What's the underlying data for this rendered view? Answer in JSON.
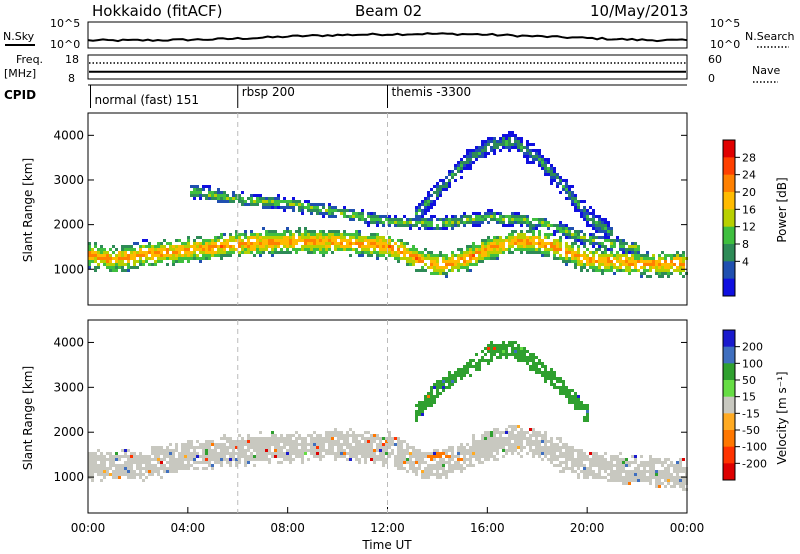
{
  "header": {
    "station": "Hokkaido (fitACF)",
    "beam": "Beam 02",
    "date": "10/May/2013"
  },
  "noise_panel": {
    "left_label": "N.Sky",
    "right_label": "N.Search",
    "left_ticks": [
      "10^5",
      "10^0"
    ],
    "right_ticks": [
      "10^5",
      "10^0"
    ],
    "sky_level": [
      0.3,
      0.3,
      0.32,
      0.35,
      0.42,
      0.5,
      0.55,
      0.58,
      0.6,
      0.58,
      0.52,
      0.45,
      0.38,
      0.32,
      0.3
    ]
  },
  "freq_panel": {
    "left_label": "Freq.",
    "left_unit": "[MHz]",
    "right_label": "Nave",
    "left_ticks": [
      "18",
      "8"
    ],
    "right_ticks": [
      "60",
      "0"
    ],
    "freq_mhz": 11.0,
    "nave": 40
  },
  "cpid_panel": {
    "label": "CPID",
    "segments": [
      {
        "label": "normal (fast) 151",
        "start_hr": 0.1
      },
      {
        "label": "rbsp 200",
        "start_hr": 6.0
      },
      {
        "label": "themis -3300",
        "start_hr": 12.0
      }
    ]
  },
  "chart_data": [
    {
      "type": "heatmap",
      "title": "",
      "ylabel": "Slant Range [km]",
      "xlabel": "",
      "xlim": [
        0,
        24
      ],
      "ylim": [
        200,
        4500
      ],
      "yticks": [
        "1000",
        "2000",
        "3000",
        "4000"
      ],
      "colorbar": {
        "label": "Power [dB]",
        "ticks": [
          "28",
          "24",
          "20",
          "16",
          "12",
          "8",
          "4"
        ],
        "colors": [
          "#e00000",
          "#ff4000",
          "#ff8000",
          "#ffbb00",
          "#b8d000",
          "#3fbf3f",
          "#2e8b57",
          "#2050b0",
          "#1010e0"
        ]
      },
      "bands": [
        {
          "name": "main",
          "path": [
            [
              0,
              1350
            ],
            [
              1,
              1250
            ],
            [
              2,
              1350
            ],
            [
              4,
              1450
            ],
            [
              6,
              1600
            ],
            [
              8,
              1650
            ],
            [
              10,
              1650
            ],
            [
              12,
              1550
            ],
            [
              13,
              1300
            ],
            [
              14,
              1100
            ],
            [
              15,
              1250
            ],
            [
              16,
              1500
            ],
            [
              17,
              1650
            ],
            [
              18,
              1650
            ],
            [
              19,
              1450
            ],
            [
              20,
              1250
            ],
            [
              22,
              1150
            ],
            [
              24,
              1150
            ]
          ],
          "halfwidth": 250,
          "level_db": 22
        },
        {
          "name": "upper-arc",
          "path": [
            [
              13,
              2200
            ],
            [
              14,
              2800
            ],
            [
              15,
              3400
            ],
            [
              16,
              3800
            ],
            [
              17,
              3900
            ],
            [
              18,
              3500
            ],
            [
              19,
              2900
            ],
            [
              20,
              2200
            ],
            [
              21,
              1800
            ]
          ],
          "halfwidth": 200,
          "level_db": 10
        },
        {
          "name": "second-hop",
          "path": [
            [
              4,
              2800
            ],
            [
              6,
              2600
            ],
            [
              8,
              2500
            ],
            [
              10,
              2300
            ],
            [
              12,
              2100
            ],
            [
              14,
              2050
            ],
            [
              16,
              2200
            ],
            [
              18,
              2100
            ],
            [
              20,
              1700
            ],
            [
              22,
              1500
            ]
          ],
          "halfwidth": 140,
          "level_db": 14
        }
      ]
    },
    {
      "type": "heatmap",
      "title": "",
      "ylabel": "Slant Range [km]",
      "xlabel": "Time UT",
      "xlim": [
        0,
        24
      ],
      "ylim": [
        200,
        4500
      ],
      "xticks": [
        "00:00",
        "04:00",
        "08:00",
        "12:00",
        "16:00",
        "20:00",
        "00:00"
      ],
      "yticks": [
        "1000",
        "2000",
        "3000",
        "4000"
      ],
      "colorbar": {
        "label": "Velocity [m s⁻¹]",
        "ticks": [
          "200",
          "100",
          "50",
          "15",
          "-15",
          "-50",
          "-100",
          "-200"
        ],
        "colors": [
          "#1a1acd",
          "#3f6fbf",
          "#2fa02f",
          "#66dd44",
          "#c8c8c0",
          "#ffaa22",
          "#ff7700",
          "#ff3300",
          "#dd0000"
        ]
      },
      "bands": [
        {
          "name": "ground-scatter",
          "path": [
            [
              0,
              1300
            ],
            [
              2,
              1300
            ],
            [
              4,
              1500
            ],
            [
              6,
              1650
            ],
            [
              8,
              1700
            ],
            [
              10,
              1750
            ],
            [
              12,
              1650
            ],
            [
              13,
              1400
            ],
            [
              14,
              1300
            ],
            [
              15,
              1500
            ],
            [
              16,
              1750
            ],
            [
              17,
              1850
            ],
            [
              18,
              1800
            ],
            [
              19,
              1500
            ],
            [
              20,
              1250
            ],
            [
              22,
              1150
            ],
            [
              24,
              1100
            ]
          ],
          "halfwidth": 300,
          "velocity": 0
        },
        {
          "name": "positive-arc",
          "path": [
            [
              13,
              2400
            ],
            [
              14,
              3000
            ],
            [
              15,
              3400
            ],
            [
              16,
              3800
            ],
            [
              17,
              3900
            ],
            [
              18,
              3500
            ],
            [
              19,
              3000
            ],
            [
              20,
              2400
            ]
          ],
          "halfwidth": 180,
          "velocity": 40
        },
        {
          "name": "negative-patch",
          "path": [
            [
              13,
              1350
            ],
            [
              14,
              1500
            ],
            [
              15,
              1400
            ]
          ],
          "halfwidth": 120,
          "velocity": -60
        }
      ]
    }
  ]
}
